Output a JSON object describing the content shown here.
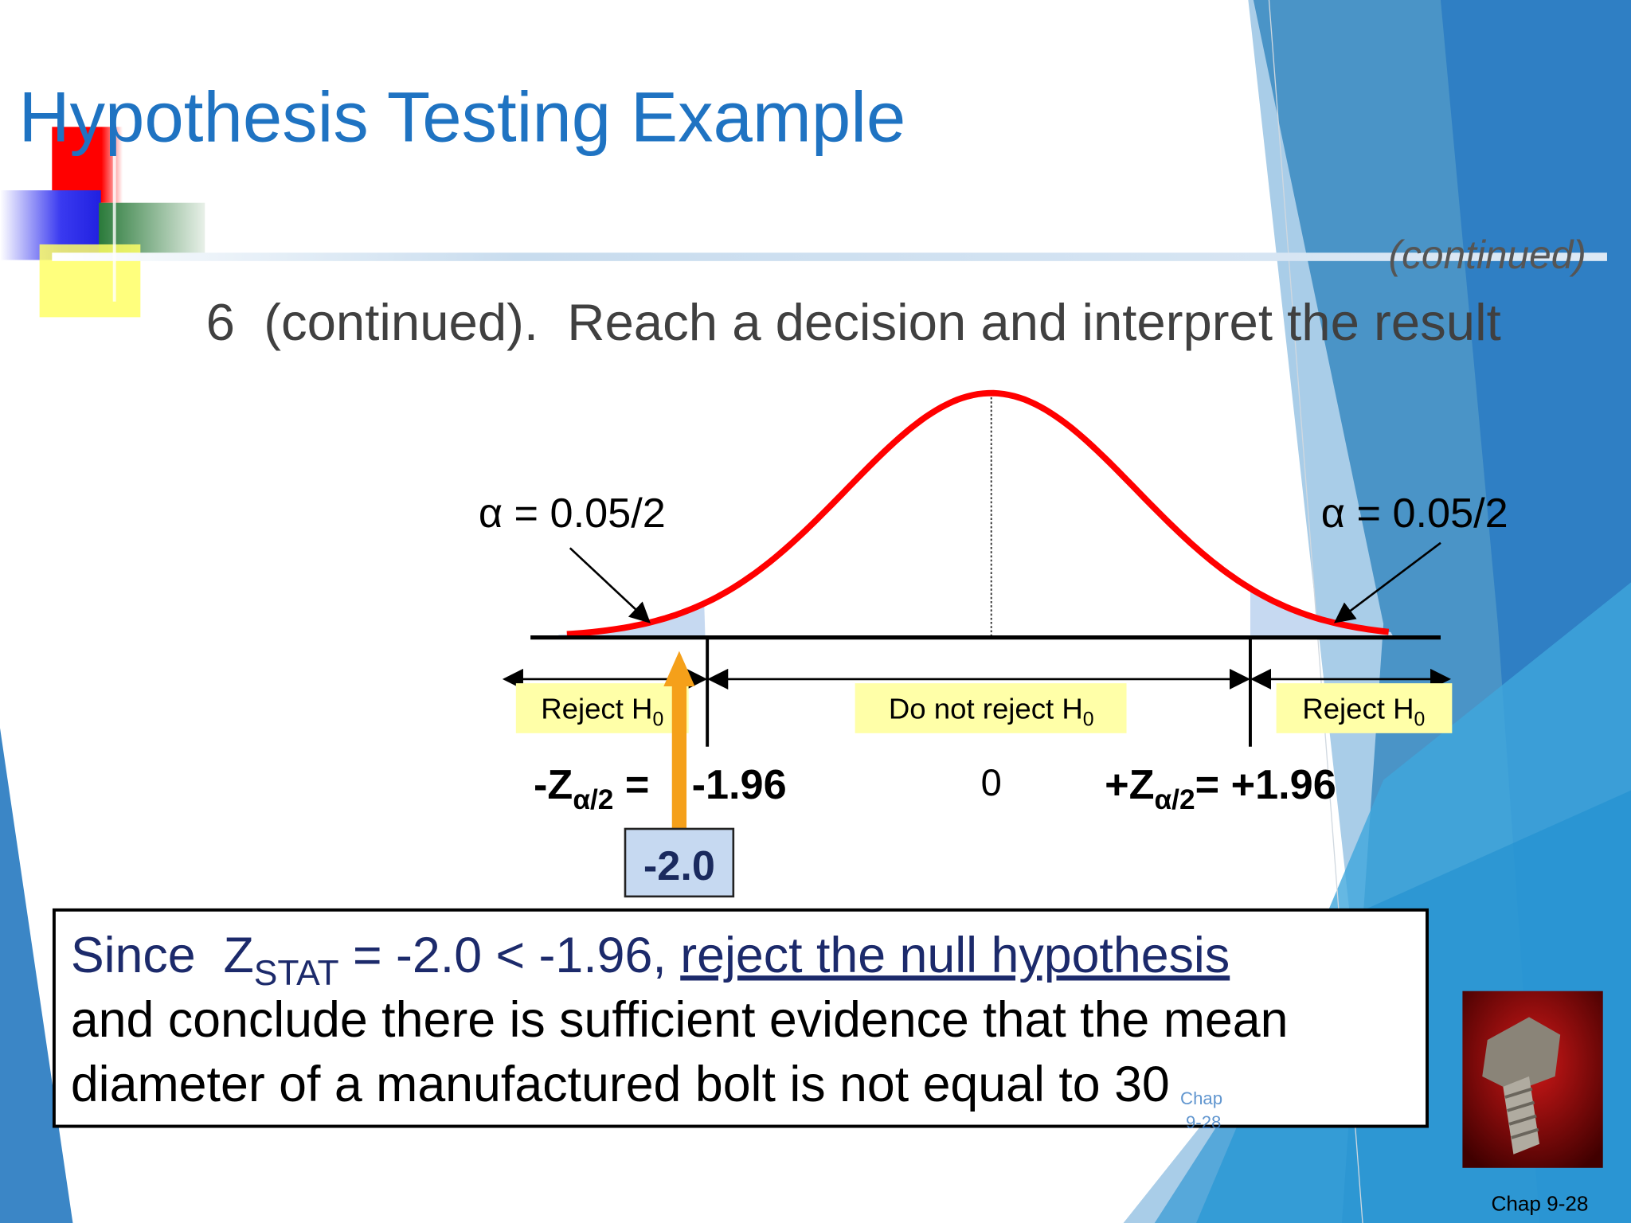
{
  "header": {
    "title": "Hypothesis Testing Example",
    "continued": "(continued)"
  },
  "subtitle": "6  (continued).  Reach a decision and interpret the result",
  "diagram": {
    "alpha_left": "α = 0.05/2",
    "alpha_right": "α = 0.05/2",
    "regions": [
      {
        "label": "Reject H",
        "sub": "0"
      },
      {
        "label": "Do not reject H",
        "sub": "0"
      },
      {
        "label": "Reject H",
        "sub": "0"
      }
    ],
    "critical_left": {
      "z": "-Z",
      "sub": "α/2",
      "eq": " = ",
      "value": "-1.96"
    },
    "center": "0",
    "critical_right": {
      "z": "+Z",
      "sub": "α/2",
      "value": "= +1.96"
    },
    "test_stat": "-2.0"
  },
  "conclusion": {
    "line1_pre": "Since  Z",
    "sub": "STAT",
    "line1_mid": " = -2.0 < -1.96, ",
    "link": "reject the null hypothesis",
    "line2": "and conclude there is sufficient evidence that the mean",
    "line3": "diameter of a manufactured bolt is not equal to 30"
  },
  "footer": {
    "page": "Chap 9-28",
    "watermark": [
      "Chap",
      "9-28"
    ]
  }
}
